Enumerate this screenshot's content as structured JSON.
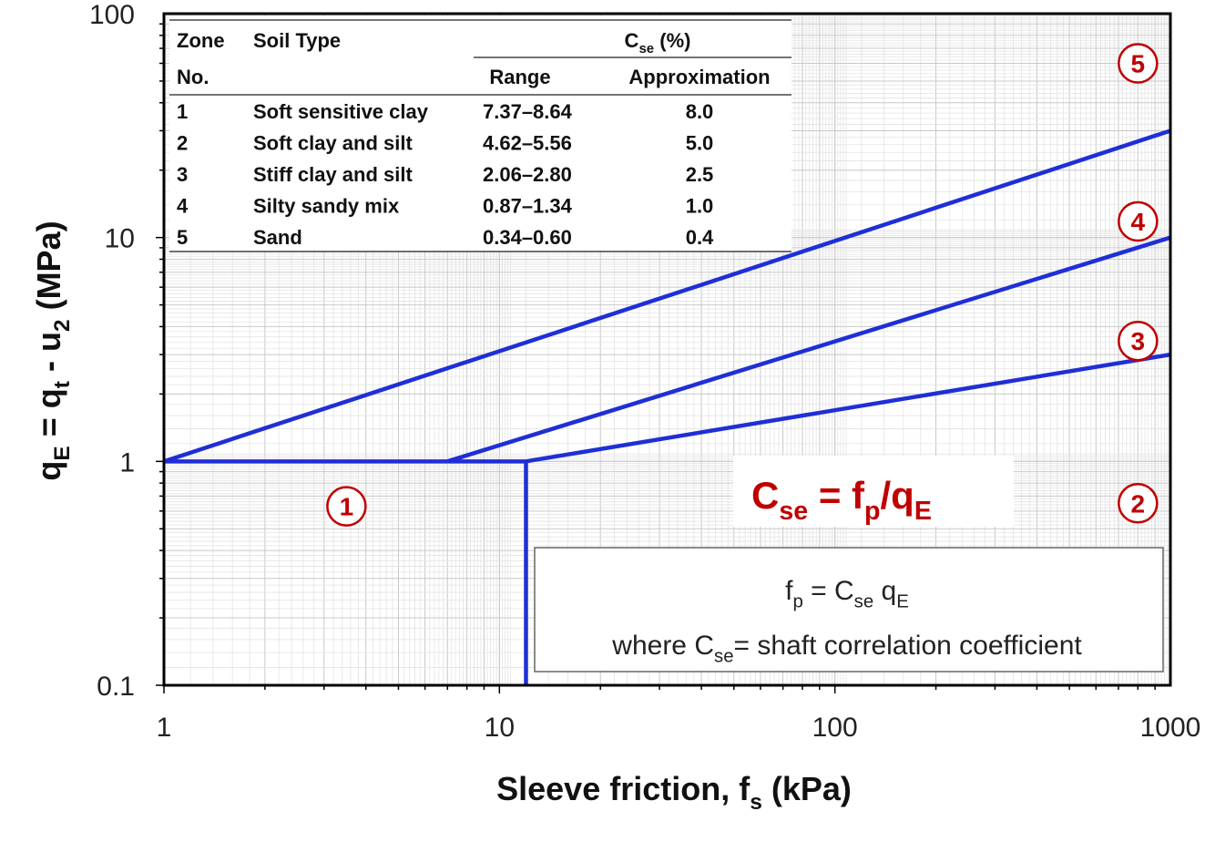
{
  "chart_data": {
    "type": "line",
    "title": "",
    "xscale": "log",
    "yscale": "log",
    "xlim": [
      1,
      1000
    ],
    "ylim": [
      0.1,
      100
    ],
    "x_ticks": [
      "1",
      "10",
      "100",
      "1000"
    ],
    "y_ticks": [
      "0.1",
      "1",
      "10",
      "100"
    ],
    "grid": true,
    "xlabel": {
      "main": "Sleeve friction, f",
      "sub": "s",
      "tail": " (kPa)"
    },
    "ylabel": {
      "parts": [
        {
          "t": "q",
          "sub": false
        },
        {
          "t": "E",
          "sub": true
        },
        {
          "t": " = q",
          "sub": false
        },
        {
          "t": "t",
          "sub": true
        },
        {
          "t": " - u",
          "sub": false
        },
        {
          "t": "2",
          "sub": true
        },
        {
          "t": " (MPa)",
          "sub": false
        }
      ]
    },
    "line_color": "#1f2fd6",
    "accent_color": "#c00000",
    "boundaries": [
      {
        "from": [
          1,
          1
        ],
        "to": [
          1000,
          30
        ]
      },
      {
        "from": [
          7,
          1
        ],
        "to": [
          1000,
          10
        ]
      },
      {
        "from": [
          12,
          1
        ],
        "to": [
          1000,
          3
        ]
      },
      {
        "from": [
          1,
          1
        ],
        "to": [
          12,
          1
        ]
      },
      {
        "from": [
          12,
          1
        ],
        "to": [
          12,
          0.1
        ]
      }
    ],
    "zone_labels": [
      {
        "label": "1",
        "x": 3.5,
        "y": 0.63
      },
      {
        "label": "2",
        "x": 800,
        "y": 0.65
      },
      {
        "label": "3",
        "x": 800,
        "y": 3.45
      },
      {
        "label": "4",
        "x": 800,
        "y": 11.8
      },
      {
        "label": "5",
        "x": 800,
        "y": 60
      }
    ],
    "formula": {
      "main": "C",
      "sub1": "se",
      "mid": " = f",
      "sub2": "p",
      "mid2": "/q",
      "sub3": "E"
    },
    "note": {
      "line1": {
        "a": "f",
        "a_sub": "p",
        "b": " = C",
        "b_sub": "se",
        "c": " q",
        "c_sub": "E"
      },
      "line2": {
        "a": "where C",
        "a_sub": "se",
        "b": "= shaft correlation coefficient"
      }
    },
    "table": {
      "headers": {
        "zone1": "Zone",
        "zone2": "No.",
        "soil": "Soil Type",
        "cse": "C",
        "cse_sub": "se",
        "cse_tail": " (%)",
        "range": "Range",
        "approx": "Approximation"
      },
      "rows": [
        {
          "zone": "1",
          "soil": "Soft sensitive clay",
          "range": "7.37–8.64",
          "approx": "8.0"
        },
        {
          "zone": "2",
          "soil": "Soft clay and silt",
          "range": "4.62–5.56",
          "approx": "5.0"
        },
        {
          "zone": "3",
          "soil": "Stiff clay and silt",
          "range": "2.06–2.80",
          "approx": "2.5"
        },
        {
          "zone": "4",
          "soil": "Silty sandy mix",
          "range": "0.87–1.34",
          "approx": "1.0"
        },
        {
          "zone": "5",
          "soil": "Sand",
          "range": "0.34–0.60",
          "approx": "0.4"
        }
      ]
    }
  }
}
